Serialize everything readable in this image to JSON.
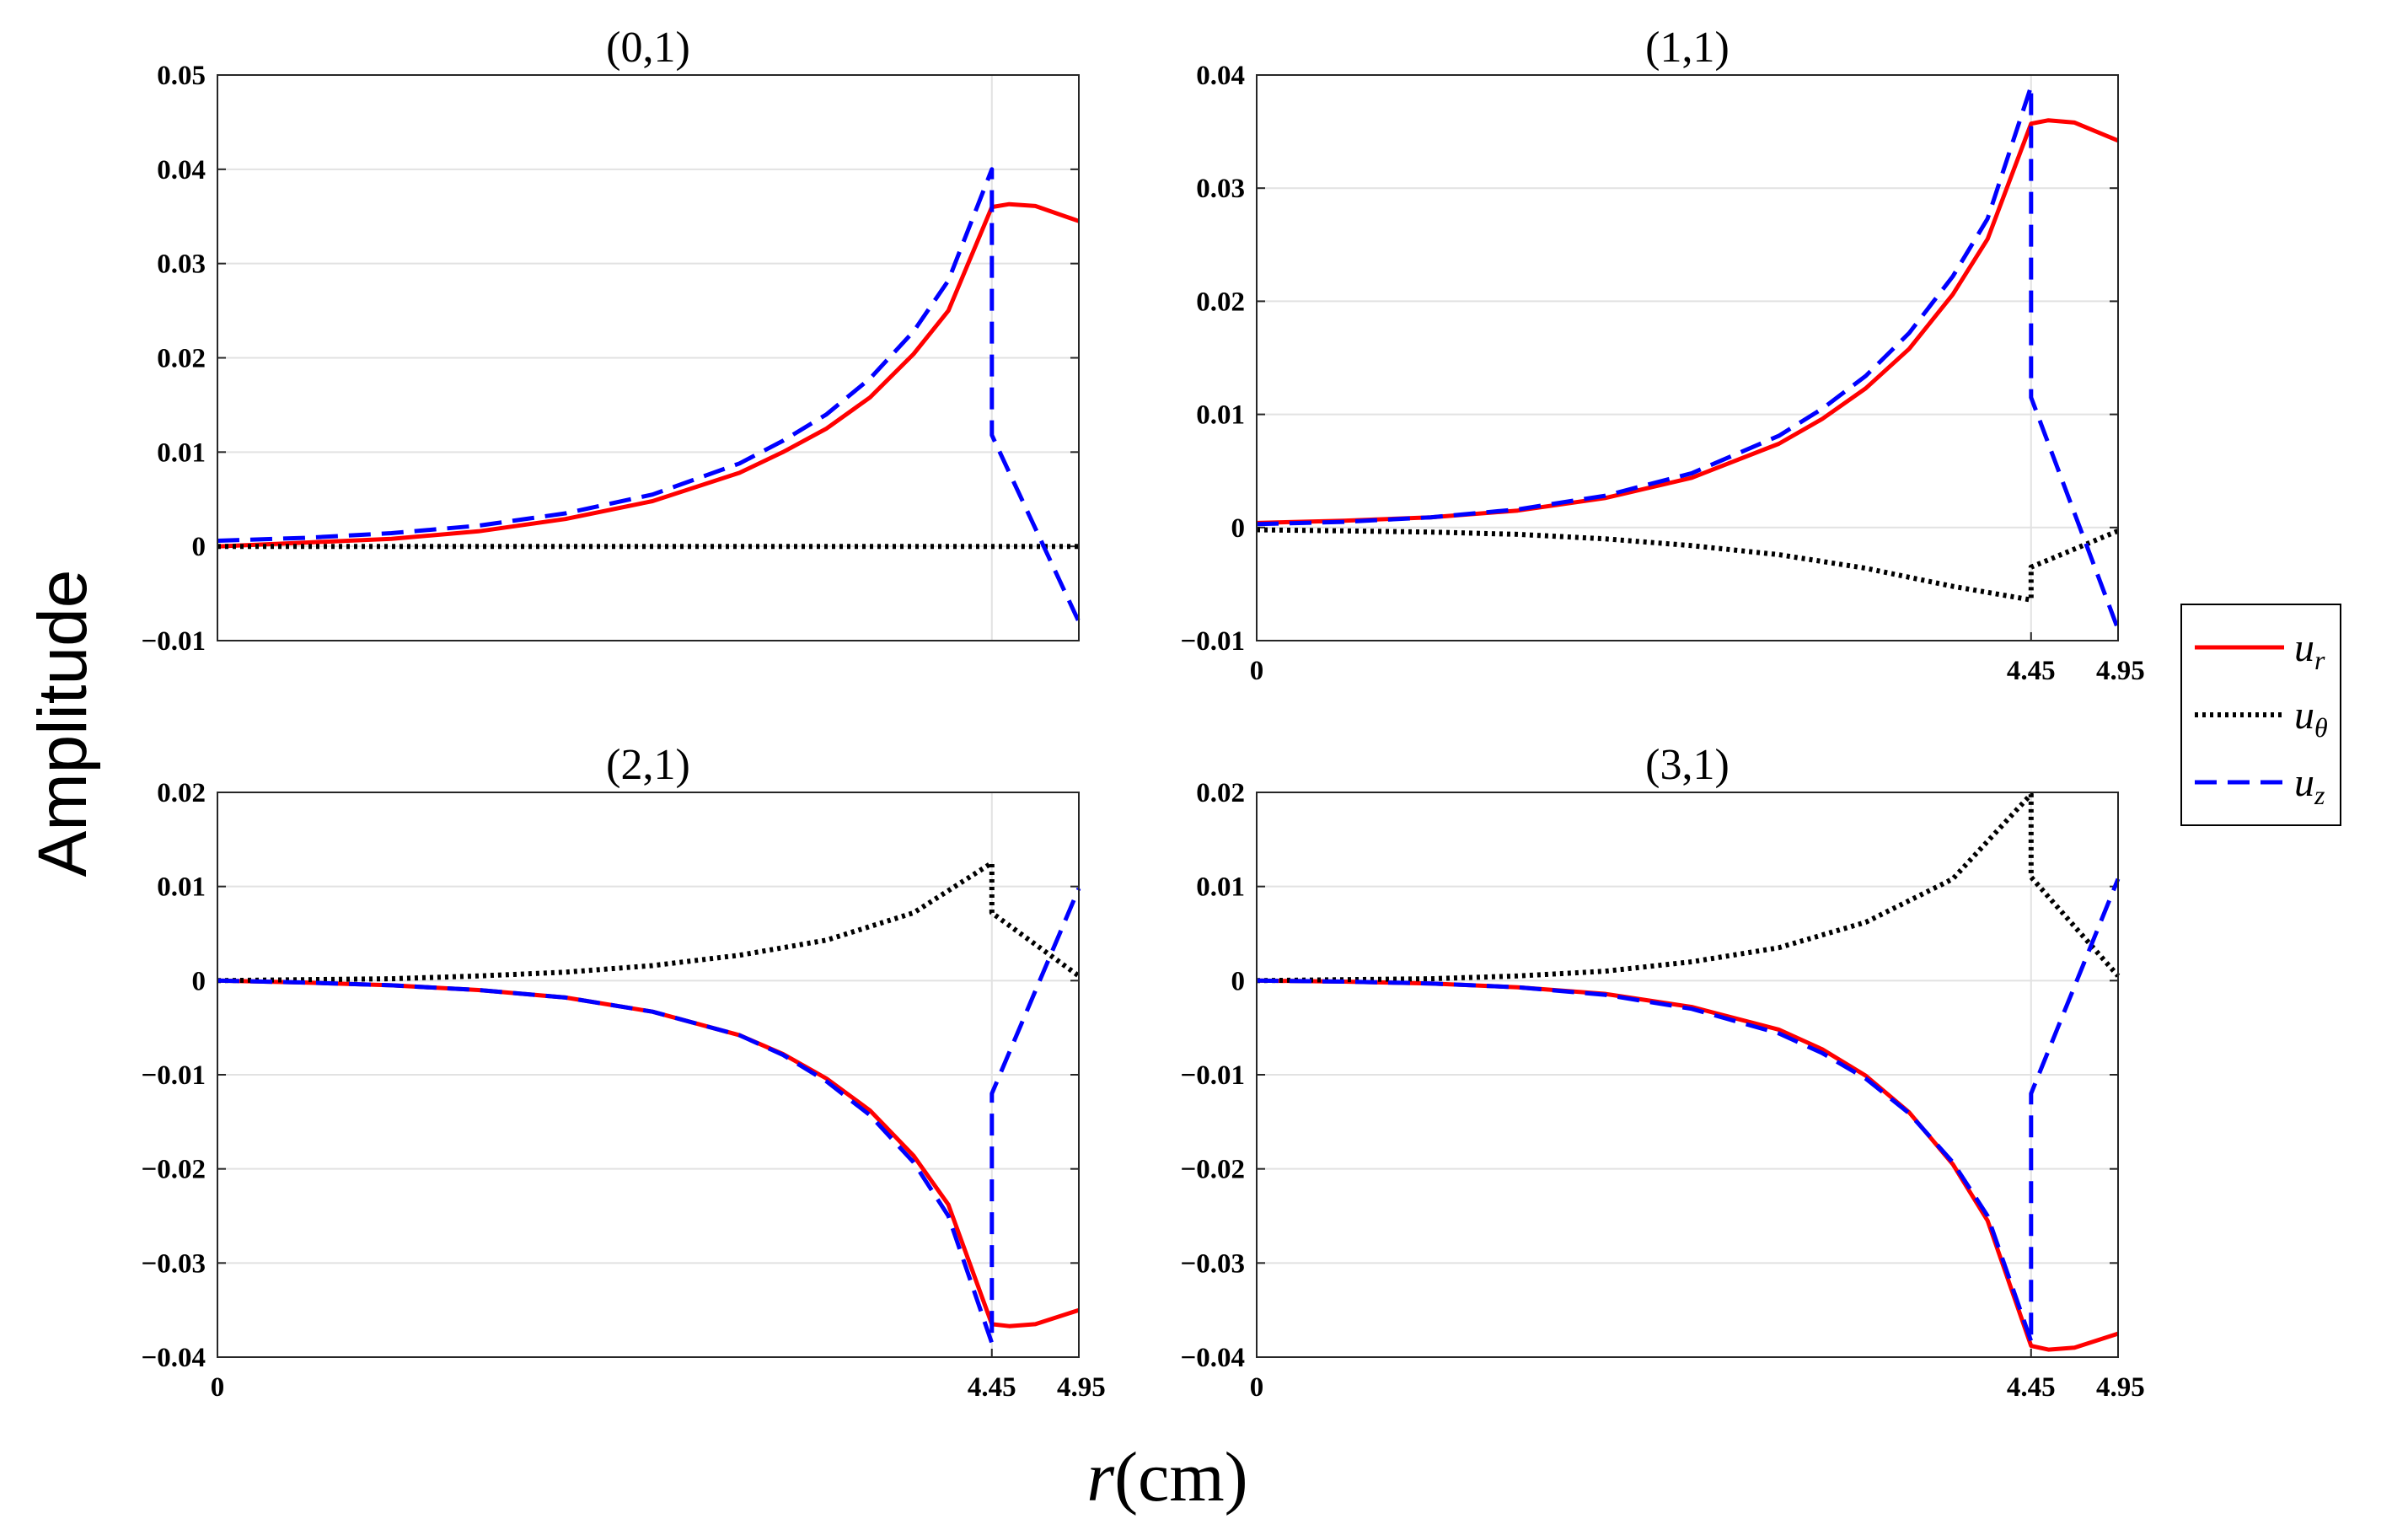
{
  "figure": {
    "ylabel": "Amplitude",
    "xlabel_var": "r",
    "xlabel_unit": "(cm)"
  },
  "legend": [
    {
      "symbol": "u",
      "sub": "r",
      "color": "#ff0000",
      "style": "solid"
    },
    {
      "symbol": "u",
      "sub": "θ",
      "color": "#000000",
      "style": "dotted"
    },
    {
      "symbol": "u",
      "sub": "z",
      "color": "#0000ff",
      "style": "dashed"
    }
  ],
  "chart_data": [
    {
      "type": "line",
      "title": "(0,1)",
      "xlim": [
        0,
        4.95
      ],
      "ylim": [
        -0.01,
        0.05
      ],
      "yticks": [
        -0.01,
        0,
        0.01,
        0.02,
        0.03,
        0.04,
        0.05
      ],
      "ytick_labels": [
        "−0.01",
        "0",
        "0.01",
        "0.02",
        "0.03",
        "0.04",
        "0.05"
      ],
      "xticks": [],
      "xtick_labels": [],
      "vline": 4.45,
      "series": [
        {
          "name": "u_r",
          "x": [
            0,
            0.5,
            1,
            1.5,
            2,
            2.5,
            3,
            3.25,
            3.5,
            3.75,
            4,
            4.2,
            4.45,
            4.55,
            4.7,
            4.95
          ],
          "values": [
            0,
            0.0004,
            0.0008,
            0.0016,
            0.0029,
            0.0048,
            0.0078,
            0.01,
            0.0125,
            0.0158,
            0.0204,
            0.025,
            0.036,
            0.0363,
            0.0361,
            0.0345
          ]
        },
        {
          "name": "u_θ",
          "x": [
            0,
            4.95
          ],
          "values": [
            0,
            0
          ]
        },
        {
          "name": "u_z",
          "x": [
            0,
            0.5,
            1,
            1.5,
            2,
            2.5,
            3,
            3.25,
            3.5,
            3.75,
            4,
            4.2,
            4.45,
            4.45,
            4.45,
            4.95
          ],
          "values": [
            0.0006,
            0.0009,
            0.0014,
            0.0022,
            0.0035,
            0.0055,
            0.0088,
            0.0112,
            0.014,
            0.0178,
            0.0228,
            0.0282,
            0.04,
            0.036,
            0.0118,
            -0.008
          ]
        }
      ]
    },
    {
      "type": "line",
      "title": "(1,1)",
      "xlim": [
        0,
        4.95
      ],
      "ylim": [
        -0.01,
        0.04
      ],
      "yticks": [
        -0.01,
        0,
        0.01,
        0.02,
        0.03,
        0.04
      ],
      "ytick_labels": [
        "−0.01",
        "0",
        "0.01",
        "0.02",
        "0.03",
        "0.04"
      ],
      "xticks": [
        0,
        4.45,
        4.95
      ],
      "xtick_labels": [
        "0",
        "4.45",
        "4.95"
      ],
      "vline": 4.45,
      "series": [
        {
          "name": "u_r",
          "x": [
            0,
            0.5,
            1,
            1.5,
            2,
            2.5,
            3,
            3.25,
            3.5,
            3.75,
            4,
            4.2,
            4.45,
            4.55,
            4.7,
            4.95
          ],
          "values": [
            0.0004,
            0.0006,
            0.0009,
            0.0015,
            0.0026,
            0.0044,
            0.0074,
            0.0096,
            0.0123,
            0.0158,
            0.0206,
            0.0255,
            0.0357,
            0.036,
            0.0358,
            0.0342
          ]
        },
        {
          "name": "u_θ",
          "x": [
            0,
            0.5,
            1,
            1.5,
            2,
            2.5,
            3,
            3.5,
            4,
            4.45,
            4.45,
            4.95
          ],
          "values": [
            -0.0002,
            -0.0003,
            -0.0004,
            -0.0006,
            -0.001,
            -0.0016,
            -0.0024,
            -0.0036,
            -0.0052,
            -0.0064,
            -0.0035,
            -0.0003
          ]
        },
        {
          "name": "u_z",
          "x": [
            0,
            0.5,
            1,
            1.5,
            2,
            2.5,
            3,
            3.25,
            3.5,
            3.75,
            4,
            4.2,
            4.45,
            4.45,
            4.45,
            4.95
          ],
          "values": [
            0.0003,
            0.0005,
            0.0009,
            0.0016,
            0.0028,
            0.0048,
            0.0081,
            0.0105,
            0.0134,
            0.0172,
            0.0222,
            0.0273,
            0.039,
            0.0355,
            0.0115,
            -0.009
          ]
        }
      ]
    },
    {
      "type": "line",
      "title": "(2,1)",
      "xlim": [
        0,
        4.95
      ],
      "ylim": [
        -0.04,
        0.02
      ],
      "yticks": [
        -0.04,
        -0.03,
        -0.02,
        -0.01,
        0,
        0.01,
        0.02
      ],
      "ytick_labels": [
        "−0.04",
        "−0.03",
        "−0.02",
        "−0.01",
        "0",
        "0.01",
        "0.02"
      ],
      "xticks": [
        0,
        4.45,
        4.95
      ],
      "xtick_labels": [
        "0",
        "4.45",
        "4.95"
      ],
      "vline": 4.45,
      "series": [
        {
          "name": "u_r",
          "x": [
            0,
            0.5,
            1,
            1.5,
            2,
            2.5,
            3,
            3.25,
            3.5,
            3.75,
            4,
            4.2,
            4.45,
            4.55,
            4.7,
            4.95
          ],
          "values": [
            0,
            -0.0002,
            -0.0005,
            -0.001,
            -0.0018,
            -0.0033,
            -0.0058,
            -0.0078,
            -0.0104,
            -0.0138,
            -0.0186,
            -0.0238,
            -0.0365,
            -0.0367,
            -0.0365,
            -0.035
          ]
        },
        {
          "name": "u_θ",
          "x": [
            0,
            0.5,
            1,
            1.5,
            2,
            2.5,
            3,
            3.5,
            4,
            4.45,
            4.45,
            4.95
          ],
          "values": [
            0,
            0.0001,
            0.0002,
            0.0005,
            0.0009,
            0.0016,
            0.0027,
            0.0043,
            0.0072,
            0.0125,
            0.0072,
            0.0005
          ]
        },
        {
          "name": "u_z",
          "x": [
            0,
            0.5,
            1,
            1.5,
            2,
            2.5,
            3,
            3.25,
            3.5,
            3.75,
            4,
            4.2,
            4.45,
            4.45,
            4.45,
            4.95
          ],
          "values": [
            0,
            -0.0002,
            -0.0005,
            -0.001,
            -0.0018,
            -0.0033,
            -0.0058,
            -0.0079,
            -0.0107,
            -0.0143,
            -0.0193,
            -0.025,
            -0.0385,
            -0.0365,
            -0.012,
            0.0098
          ]
        }
      ]
    },
    {
      "type": "line",
      "title": "(3,1)",
      "xlim": [
        0,
        4.95
      ],
      "ylim": [
        -0.04,
        0.02
      ],
      "yticks": [
        -0.04,
        -0.03,
        -0.02,
        -0.01,
        0,
        0.01,
        0.02
      ],
      "ytick_labels": [
        "−0.04",
        "−0.03",
        "−0.02",
        "−0.01",
        "0",
        "0.01",
        "0.02"
      ],
      "xticks": [
        0,
        4.45,
        4.95
      ],
      "xtick_labels": [
        "0",
        "4.45",
        "4.95"
      ],
      "vline": 4.45,
      "series": [
        {
          "name": "u_r",
          "x": [
            0,
            0.5,
            1,
            1.5,
            2,
            2.5,
            3,
            3.25,
            3.5,
            3.75,
            4,
            4.2,
            4.45,
            4.55,
            4.7,
            4.95
          ],
          "values": [
            0,
            -0.0001,
            -0.0003,
            -0.0007,
            -0.0014,
            -0.0028,
            -0.0052,
            -0.0073,
            -0.0101,
            -0.014,
            -0.0195,
            -0.0255,
            -0.0388,
            -0.0392,
            -0.039,
            -0.0375
          ]
        },
        {
          "name": "u_θ",
          "x": [
            0,
            0.5,
            1,
            1.5,
            2,
            2.5,
            3,
            3.5,
            4,
            4.45,
            4.45,
            4.95
          ],
          "values": [
            0,
            0.0001,
            0.0002,
            0.0005,
            0.001,
            0.002,
            0.0035,
            0.0062,
            0.0108,
            0.0198,
            0.011,
            0.0005
          ]
        },
        {
          "name": "u_z",
          "x": [
            0,
            0.5,
            1,
            1.5,
            2,
            2.5,
            3,
            3.25,
            3.5,
            3.75,
            4,
            4.2,
            4.45,
            4.45,
            4.45,
            4.95
          ],
          "values": [
            0,
            -0.0001,
            -0.0003,
            -0.0007,
            -0.0015,
            -0.003,
            -0.0056,
            -0.0077,
            -0.0104,
            -0.0141,
            -0.0193,
            -0.025,
            -0.0383,
            -0.0385,
            -0.012,
            0.0108
          ]
        }
      ]
    }
  ]
}
